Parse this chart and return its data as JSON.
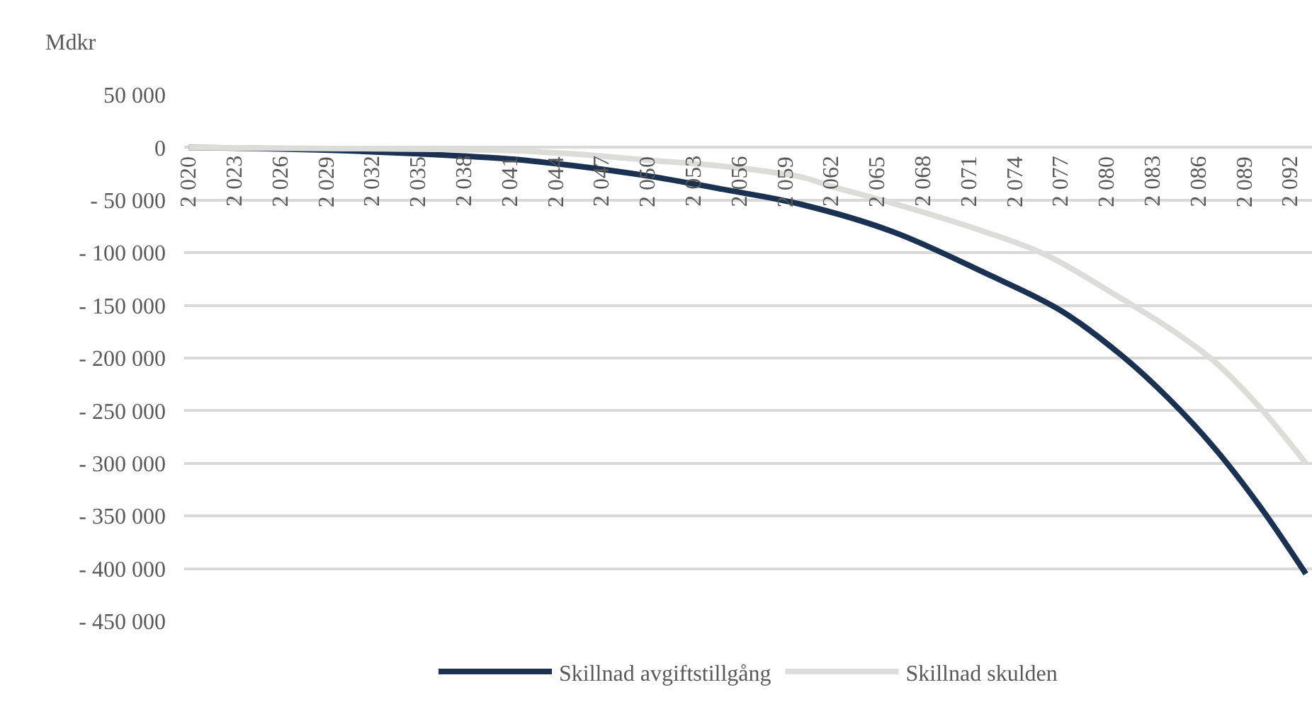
{
  "chart_data": {
    "type": "line",
    "ylabel": "Mdkr",
    "xlim": [
      2019.7,
      2093.4
    ],
    "xticks": [
      {
        "value": 2020,
        "label": "2 020"
      },
      {
        "value": 2023,
        "label": "2 023"
      },
      {
        "value": 2026,
        "label": "2 026"
      },
      {
        "value": 2029,
        "label": "2 029"
      },
      {
        "value": 2032,
        "label": "2 032"
      },
      {
        "value": 2035,
        "label": "2 035"
      },
      {
        "value": 2038,
        "label": "2 038"
      },
      {
        "value": 2041,
        "label": "2 041"
      },
      {
        "value": 2044,
        "label": "2 044"
      },
      {
        "value": 2047,
        "label": "2 047"
      },
      {
        "value": 2050,
        "label": "2 050"
      },
      {
        "value": 2053,
        "label": "2 053"
      },
      {
        "value": 2056,
        "label": "2 056"
      },
      {
        "value": 2059,
        "label": "2 059"
      },
      {
        "value": 2062,
        "label": "2 062"
      },
      {
        "value": 2065,
        "label": "2 065"
      },
      {
        "value": 2068,
        "label": "2 068"
      },
      {
        "value": 2071,
        "label": "2 071"
      },
      {
        "value": 2074,
        "label": "2 074"
      },
      {
        "value": 2077,
        "label": "2 077"
      },
      {
        "value": 2080,
        "label": "2 080"
      },
      {
        "value": 2083,
        "label": "2 083"
      },
      {
        "value": 2086,
        "label": "2 086"
      },
      {
        "value": 2089,
        "label": "2 089"
      },
      {
        "value": 2092,
        "label": "2 092"
      }
    ],
    "ylim": [
      -450000,
      50000
    ],
    "yticks": [
      {
        "value": 50000,
        "label": "50 000"
      },
      0,
      {
        "value": -50000,
        "label": "- 50 000"
      },
      {
        "value": -100000,
        "label": "- 100 000"
      },
      {
        "value": -150000,
        "label": "- 150 000"
      },
      {
        "value": -200000,
        "label": "- 200 000"
      },
      {
        "value": -250000,
        "label": "- 250 000"
      },
      {
        "value": -300000,
        "label": "- 300 000"
      },
      {
        "value": -350000,
        "label": "- 350 000"
      },
      {
        "value": -400000,
        "label": "- 400 000"
      },
      {
        "value": -450000,
        "label": "- 450 000"
      }
    ],
    "grid": "y",
    "legend": "bottom",
    "marker": "none",
    "line_style": "solid",
    "series": [
      {
        "name": "Skillnad avgiftstillgång",
        "color": "#1b3152",
        "x": [
          2020,
          2025,
          2030,
          2035,
          2041,
          2045,
          2050,
          2055,
          2060,
          2066,
          2072,
          2077,
          2081,
          2084,
          2087,
          2090,
          2093
        ],
        "values": [
          0,
          -1000,
          -3000,
          -6000,
          -11000,
          -17000,
          -27000,
          -40000,
          -54000,
          -80000,
          -119000,
          -155000,
          -198000,
          -238000,
          -285000,
          -341000,
          -405000
        ]
      },
      {
        "name": "Skillnad skulden",
        "color": "#dcdcd8",
        "x": [
          2020,
          2030,
          2041,
          2045,
          2050,
          2055,
          2060,
          2062,
          2066,
          2072,
          2076,
          2081,
          2084,
          2087,
          2090,
          2093
        ],
        "values": [
          0,
          -1000,
          -3000,
          -6000,
          -12000,
          -18000,
          -28000,
          -37000,
          -53000,
          -80000,
          -102000,
          -144000,
          -171000,
          -203000,
          -247000,
          -300000
        ]
      }
    ]
  }
}
